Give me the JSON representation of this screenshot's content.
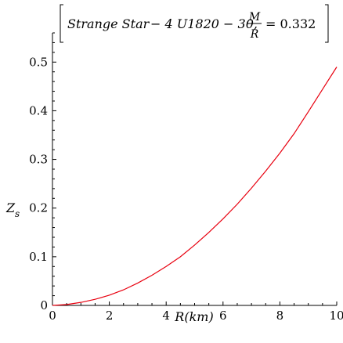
{
  "chart_data": {
    "type": "line",
    "title": {
      "prefix": "Strange Star",
      "op": "− 4 U1820 − 30,",
      "fraction_numerator": "M",
      "fraction_denominator": "R",
      "equals_value": "= 0.332"
    },
    "xlabel": "R(km)",
    "ylabel": {
      "base": "Z",
      "subscript": "s"
    },
    "xlim": [
      0,
      10
    ],
    "ylim": [
      0,
      0.56
    ],
    "x_ticks": [
      0,
      2,
      4,
      6,
      8,
      10
    ],
    "y_ticks": [
      0,
      0.1,
      0.2,
      0.3,
      0.4,
      0.5
    ],
    "grid": false,
    "series": [
      {
        "color": "#e8000f",
        "x": [
          0,
          0.5,
          1,
          1.5,
          2,
          2.5,
          3,
          3.5,
          4,
          4.5,
          5,
          5.5,
          6,
          6.5,
          7,
          7.5,
          8,
          8.5,
          9,
          9.5,
          10
        ],
        "y": [
          0,
          0.0018,
          0.0062,
          0.0125,
          0.021,
          0.032,
          0.046,
          0.062,
          0.08,
          0.1,
          0.124,
          0.15,
          0.178,
          0.208,
          0.241,
          0.276,
          0.313,
          0.353,
          0.398,
          0.444,
          0.49
        ]
      }
    ]
  }
}
